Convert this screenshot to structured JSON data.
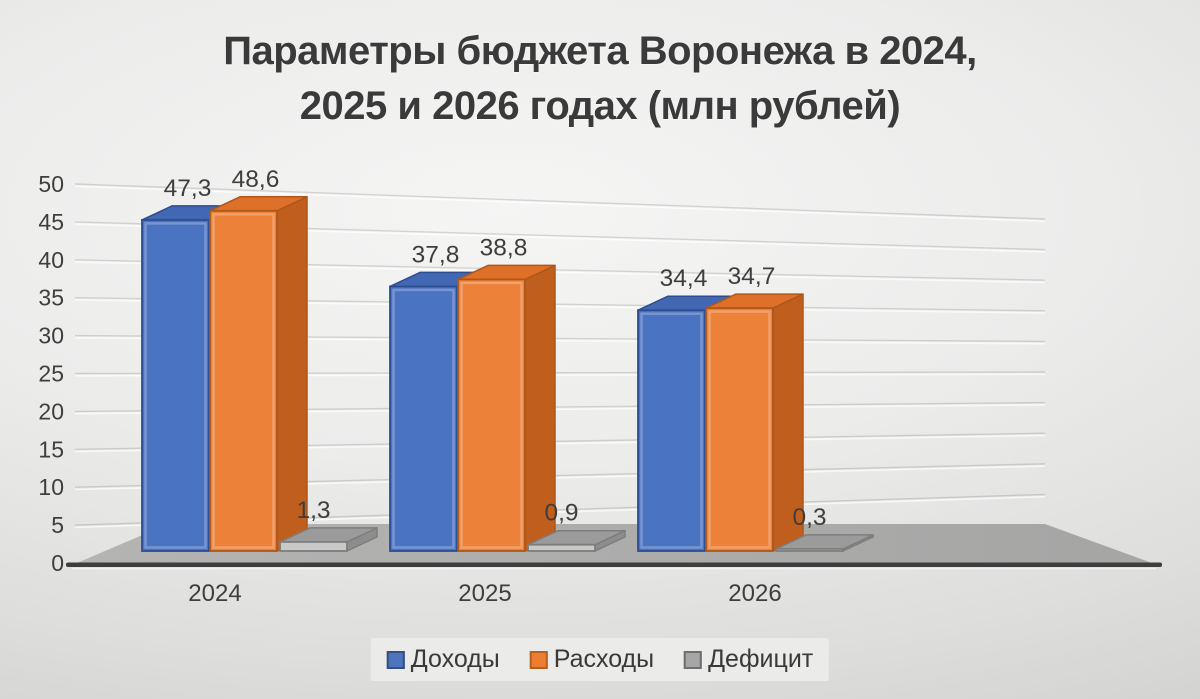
{
  "title_lines": [
    "Параметры бюджета Воронежа в 2024,",
    "2025 и 2026 годах (млн рублей)"
  ],
  "chart_data": {
    "type": "bar",
    "is_3d": true,
    "title": "Параметры бюджета Воронежа в 2024, 2025 и 2026 годах (млн рублей)",
    "categories": [
      "2024",
      "2025",
      "2026"
    ],
    "series": [
      {
        "id": "income",
        "name": "Доходы",
        "values": [
          47.3,
          37.8,
          34.4
        ],
        "labels": [
          "47,3",
          "37,8",
          "34,4"
        ],
        "colors": {
          "front": "#4a73c2",
          "side": "#3a5ca5",
          "top": "#4268b4",
          "stroke": "#2e4c92"
        },
        "swatch": "#4e74be",
        "swatch_border": "#35507e"
      },
      {
        "id": "expenses",
        "name": "Расходы",
        "values": [
          48.6,
          38.8,
          34.7
        ],
        "labels": [
          "48,6",
          "38,8",
          "34,7"
        ],
        "colors": {
          "front": "#ec8139",
          "side": "#c05f1d",
          "top": "#de7029",
          "stroke": "#ad5719"
        },
        "swatch": "#ed7d31",
        "swatch_border": "#b4611f"
      },
      {
        "id": "deficit",
        "name": "Дефицит",
        "values": [
          1.3,
          0.9,
          0.3
        ],
        "labels": [
          "1,3",
          "0,9",
          "0,3"
        ],
        "colors": {
          "front": "#c9c9c9",
          "side": "#8d8d8d",
          "top": "#9b9b9b",
          "stroke": "#7d7d7d"
        },
        "swatch": "#a6a6a6",
        "swatch_border": "#6e6e6e"
      }
    ],
    "y_axis": {
      "min": 0,
      "max": 50,
      "step": 5,
      "tick_labels": [
        "0",
        "5",
        "10",
        "15",
        "20",
        "25",
        "30",
        "35",
        "40",
        "45",
        "50"
      ]
    },
    "legend": {
      "position": "bottom",
      "entries": [
        "Доходы",
        "Расходы",
        "Дефицит"
      ]
    },
    "grid": true,
    "number_format": "comma-decimal",
    "label_color": "#3e3e3e",
    "axis_line_color": "#3e3e3e",
    "floor_colors": [
      "#b4b4b3",
      "#a5a5a4"
    ]
  }
}
